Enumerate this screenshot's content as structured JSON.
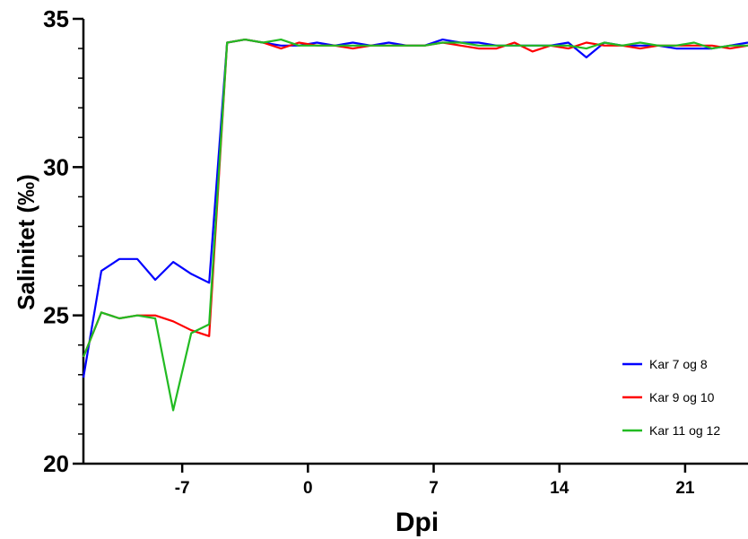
{
  "chart_data": {
    "type": "line",
    "xlabel": "Dpi",
    "ylabel": "Salinitet (‰)",
    "xlim": [
      -12.5,
      24.5
    ],
    "ylim": [
      20,
      35
    ],
    "x_ticks": [
      -7,
      0,
      7,
      14,
      21
    ],
    "y_ticks": [
      20,
      25,
      30,
      35
    ],
    "y_minor_step": 1,
    "grid": false,
    "legend_position": "bottom-right",
    "series": [
      {
        "name": "Kar 7 og 8",
        "color": "#0000ff",
        "x": [
          -12.5,
          -11.5,
          -10.5,
          -9.5,
          -8.5,
          -7.5,
          -6.5,
          -5.5,
          -4.5,
          -3.5,
          -2.5,
          -1.5,
          -0.5,
          0.5,
          1.5,
          2.5,
          3.5,
          4.5,
          5.5,
          6.5,
          7.5,
          8.5,
          9.5,
          10.5,
          11.5,
          12.5,
          13.5,
          14.5,
          15.5,
          16.5,
          17.5,
          18.5,
          19.5,
          20.5,
          21.5,
          22.5,
          23.5,
          24.5
        ],
        "y": [
          22.9,
          26.5,
          26.9,
          26.9,
          26.2,
          26.8,
          26.4,
          26.1,
          34.2,
          34.3,
          34.2,
          34.1,
          34.1,
          34.2,
          34.1,
          34.2,
          34.1,
          34.2,
          34.1,
          34.1,
          34.3,
          34.2,
          34.2,
          34.1,
          34.1,
          34.1,
          34.1,
          34.2,
          33.7,
          34.2,
          34.1,
          34.1,
          34.1,
          34.0,
          34.0,
          34.0,
          34.1,
          34.2
        ]
      },
      {
        "name": "Kar 9 og 10",
        "color": "#ff0000",
        "x": [
          -12.5,
          -11.5,
          -10.5,
          -9.5,
          -8.5,
          -7.5,
          -6.5,
          -5.5,
          -4.5,
          -3.5,
          -2.5,
          -1.5,
          -0.5,
          0.5,
          1.5,
          2.5,
          3.5,
          4.5,
          5.5,
          6.5,
          7.5,
          8.5,
          9.5,
          10.5,
          11.5,
          12.5,
          13.5,
          14.5,
          15.5,
          16.5,
          17.5,
          18.5,
          19.5,
          20.5,
          21.5,
          22.5,
          23.5,
          24.5
        ],
        "y": [
          23.6,
          25.1,
          24.9,
          25.0,
          25.0,
          24.8,
          24.5,
          24.3,
          34.2,
          34.3,
          34.2,
          34.0,
          34.2,
          34.1,
          34.1,
          34.0,
          34.1,
          34.1,
          34.1,
          34.1,
          34.2,
          34.1,
          34.0,
          34.0,
          34.2,
          33.9,
          34.1,
          34.0,
          34.2,
          34.1,
          34.1,
          34.0,
          34.1,
          34.1,
          34.1,
          34.1,
          34.0,
          34.1
        ]
      },
      {
        "name": "Kar 11 og 12",
        "color": "#22bb22",
        "x": [
          -12.5,
          -11.5,
          -10.5,
          -9.5,
          -8.5,
          -7.5,
          -6.5,
          -5.5,
          -4.5,
          -3.5,
          -2.5,
          -1.5,
          -0.5,
          0.5,
          1.5,
          2.5,
          3.5,
          4.5,
          5.5,
          6.5,
          7.5,
          8.5,
          9.5,
          10.5,
          11.5,
          12.5,
          13.5,
          14.5,
          15.5,
          16.5,
          17.5,
          18.5,
          19.5,
          20.5,
          21.5,
          22.5,
          23.5,
          24.5
        ],
        "y": [
          23.6,
          25.1,
          24.9,
          25.0,
          24.9,
          21.8,
          24.4,
          24.7,
          34.2,
          34.3,
          34.2,
          34.3,
          34.1,
          34.1,
          34.1,
          34.1,
          34.1,
          34.1,
          34.1,
          34.1,
          34.2,
          34.2,
          34.1,
          34.1,
          34.1,
          34.1,
          34.1,
          34.1,
          34.0,
          34.2,
          34.1,
          34.2,
          34.1,
          34.1,
          34.2,
          34.0,
          34.1,
          34.1
        ]
      }
    ]
  }
}
